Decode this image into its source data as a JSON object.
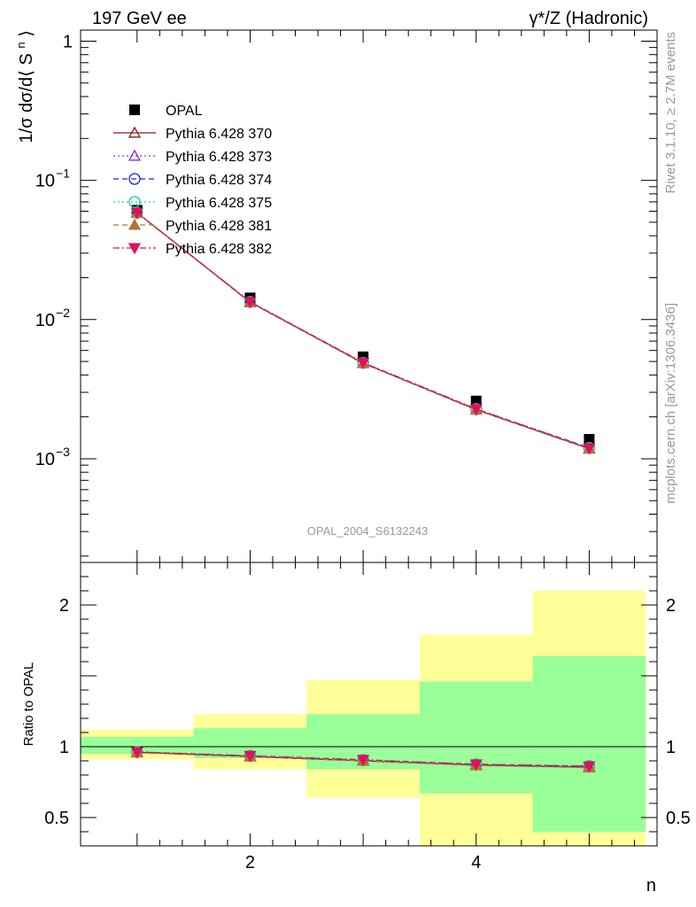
{
  "header": {
    "left": "197 GeV ee",
    "right": "γ*/Z (Hadronic)"
  },
  "side": {
    "top": "Rivet 3.1.10, ≥ 2.7M events",
    "bottom": "mcplots.cern.ch [arXiv:1306.3436]"
  },
  "watermark": "OPAL_2004_S6132243",
  "chart_data": [
    {
      "type": "scatter",
      "panel": "main",
      "ylabel": "1/σ dσ/d⟨ S^n ⟩",
      "xlabel": "n",
      "yscale": "log",
      "ylim": [
        0.00018,
        1.2
      ],
      "xlim": [
        0.5,
        5.6
      ],
      "x": [
        1,
        2,
        3,
        4,
        5
      ],
      "x_ticks": [
        "2",
        "4"
      ],
      "y_ticks": [
        "1",
        "10^-1",
        "10^-2",
        "10^-3"
      ],
      "legend_position": "top-left",
      "series": [
        {
          "name": "OPAL",
          "color": "#000000",
          "marker": "square-filled",
          "line": "none",
          "values": [
            0.061,
            0.0143,
            0.0054,
            0.0026,
            0.00138
          ]
        },
        {
          "name": "Pythia 6.428 370",
          "color": "#8b1a1a",
          "marker": "triangle-up-open",
          "line": "solid",
          "values": [
            0.0585,
            0.0133,
            0.00485,
            0.00225,
            0.00118
          ]
        },
        {
          "name": "Pythia 6.428 373",
          "color": "#8a2be2",
          "marker": "triangle-up-open",
          "line": "dotted",
          "values": [
            0.0585,
            0.0133,
            0.00488,
            0.00226,
            0.00119
          ]
        },
        {
          "name": "Pythia 6.428 374",
          "color": "#1f1fdd",
          "marker": "circle-open",
          "line": "dashed",
          "values": [
            0.0585,
            0.0134,
            0.00489,
            0.00227,
            0.0012
          ]
        },
        {
          "name": "Pythia 6.428 375",
          "color": "#10c9a8",
          "marker": "circle-open",
          "line": "dotted",
          "values": [
            0.0586,
            0.0134,
            0.0049,
            0.00228,
            0.0012
          ]
        },
        {
          "name": "Pythia 6.428 381",
          "color": "#b87333",
          "marker": "triangle-up-filled",
          "line": "dashed",
          "values": [
            0.0584,
            0.0133,
            0.00486,
            0.00225,
            0.00118
          ]
        },
        {
          "name": "Pythia 6.428 382",
          "color": "#e0115f",
          "marker": "triangle-down-filled",
          "line": "dashdot",
          "values": [
            0.0586,
            0.0134,
            0.00491,
            0.00228,
            0.00119
          ]
        }
      ]
    },
    {
      "type": "line",
      "panel": "ratio",
      "ylabel": "Ratio to OPAL",
      "xlabel": "n",
      "ylim": [
        0.3,
        2.3
      ],
      "xlim": [
        0.5,
        5.6
      ],
      "x": [
        1,
        2,
        3,
        4,
        5
      ],
      "x_ticks": [
        "2",
        "4"
      ],
      "y_ticks": [
        "0.5",
        "1",
        "2"
      ],
      "bands": [
        {
          "x0": 0.5,
          "x1": 1.5,
          "green": [
            0.95,
            1.07
          ],
          "yellow": [
            0.91,
            1.12
          ]
        },
        {
          "x0": 1.5,
          "x1": 2.5,
          "green": [
            0.92,
            1.13
          ],
          "yellow": [
            0.84,
            1.23
          ]
        },
        {
          "x0": 2.5,
          "x1": 3.5,
          "green": [
            0.84,
            1.23
          ],
          "yellow": [
            0.64,
            1.47
          ]
        },
        {
          "x0": 3.5,
          "x1": 4.5,
          "green": [
            0.67,
            1.46
          ],
          "yellow": [
            0.3,
            1.79
          ]
        },
        {
          "x0": 4.5,
          "x1": 5.5,
          "green": [
            0.4,
            1.64
          ],
          "yellow": [
            0.3,
            2.1
          ]
        }
      ],
      "series": [
        {
          "name": "Pythia 6.428 370",
          "color": "#8b1a1a",
          "marker": "triangle-up-open",
          "values": [
            0.96,
            0.93,
            0.9,
            0.87,
            0.855
          ]
        },
        {
          "name": "Pythia 6.428 373",
          "color": "#8a2be2",
          "marker": "triangle-up-open",
          "values": [
            0.96,
            0.932,
            0.902,
            0.872,
            0.858
          ]
        },
        {
          "name": "Pythia 6.428 374",
          "color": "#1f1fdd",
          "marker": "circle-open",
          "values": [
            0.962,
            0.935,
            0.905,
            0.875,
            0.862
          ]
        },
        {
          "name": "Pythia 6.428 375",
          "color": "#10c9a8",
          "marker": "circle-open",
          "values": [
            0.962,
            0.936,
            0.906,
            0.876,
            0.864
          ]
        },
        {
          "name": "Pythia 6.428 381",
          "color": "#b87333",
          "marker": "triangle-up-filled",
          "values": [
            0.958,
            0.93,
            0.9,
            0.868,
            0.852
          ]
        },
        {
          "name": "Pythia 6.428 382",
          "color": "#e0115f",
          "marker": "triangle-down-filled",
          "values": [
            0.963,
            0.936,
            0.908,
            0.876,
            0.862
          ]
        }
      ]
    }
  ]
}
